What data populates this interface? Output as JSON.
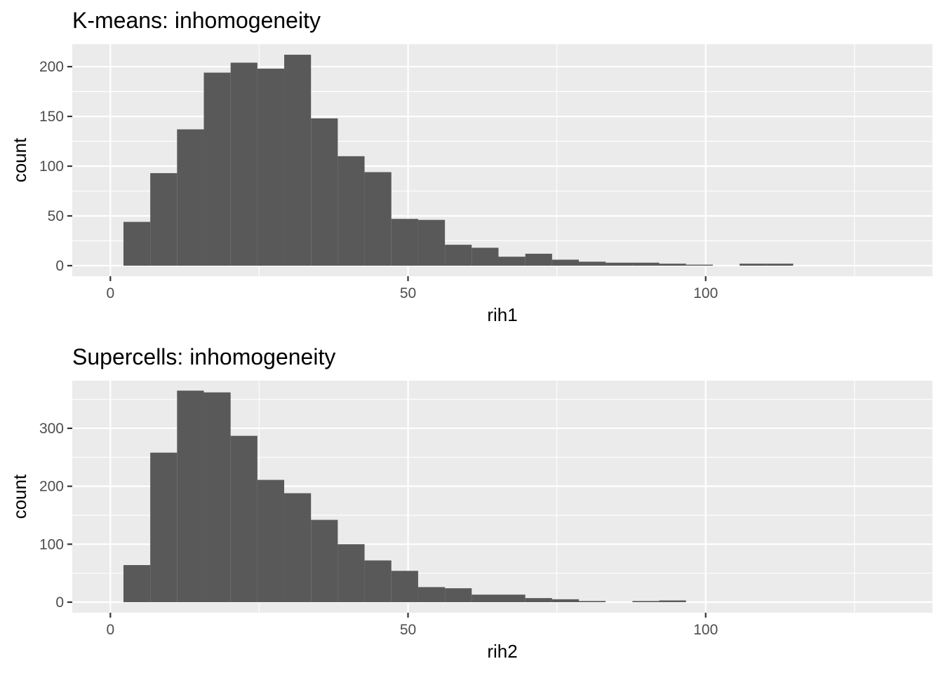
{
  "chart_data": [
    {
      "type": "bar",
      "title": "K-means: inhomogeneity",
      "xlabel": "rih1",
      "ylabel": "count",
      "xlim": [
        -6.4,
        138.1
      ],
      "ylim": [
        -10.6,
        222.6
      ],
      "x_ticks": [
        0,
        50,
        100
      ],
      "y_ticks": [
        0,
        50,
        100,
        150,
        200
      ],
      "bin_width": 4.5,
      "bin_starts": [
        2.2,
        6.7,
        11.2,
        15.7,
        20.2,
        24.7,
        29.2,
        33.7,
        38.2,
        42.7,
        47.2,
        51.7,
        56.2,
        60.7,
        65.2,
        69.7,
        74.2,
        78.7,
        83.2,
        87.7,
        92.2,
        96.7,
        101.2,
        105.7,
        110.2
      ],
      "values": [
        44,
        93,
        137,
        194,
        204,
        198,
        212,
        148,
        110,
        94,
        47,
        46,
        21,
        18,
        9,
        12,
        6,
        4,
        3,
        3,
        2,
        1,
        0,
        2,
        2
      ],
      "grid": true
    },
    {
      "type": "bar",
      "title": "Supercells: inhomogeneity",
      "xlabel": "rih2",
      "ylabel": "count",
      "xlim": [
        -6.4,
        138.1
      ],
      "ylim": [
        -18.2,
        382.2
      ],
      "x_ticks": [
        0,
        50,
        100
      ],
      "y_ticks": [
        0,
        100,
        200,
        300
      ],
      "bin_width": 4.5,
      "bin_starts": [
        2.2,
        6.7,
        11.2,
        15.7,
        20.2,
        24.7,
        29.2,
        33.7,
        38.2,
        42.7,
        47.2,
        51.7,
        56.2,
        60.7,
        65.2,
        69.7,
        74.2,
        78.7,
        83.2,
        87.7,
        92.2
      ],
      "values": [
        64,
        258,
        365,
        362,
        287,
        211,
        188,
        142,
        100,
        72,
        54,
        26,
        24,
        13,
        13,
        7,
        5,
        2,
        0,
        2,
        3
      ],
      "grid": true
    }
  ]
}
